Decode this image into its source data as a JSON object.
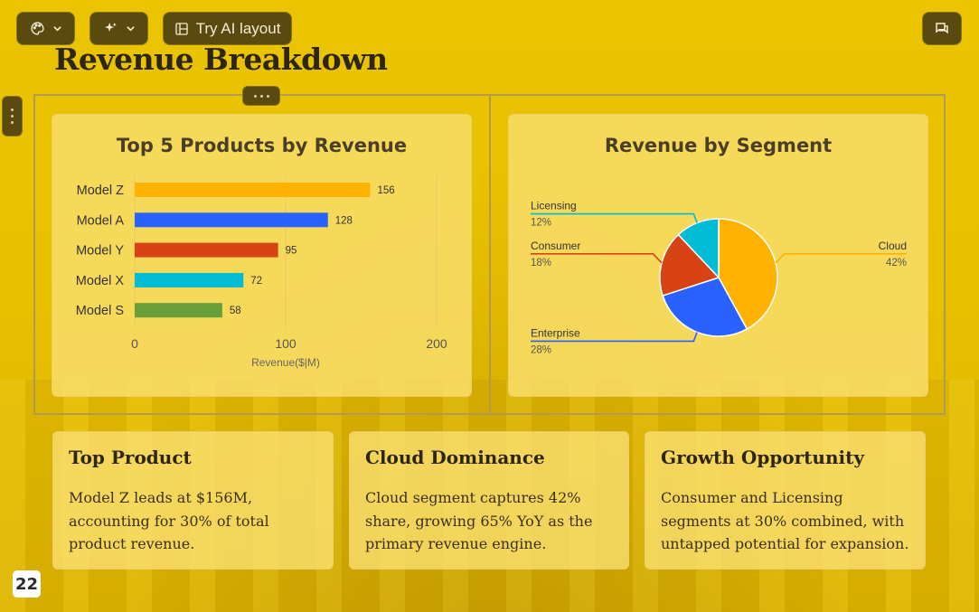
{
  "toolbar": {
    "theme_icon": "palette-icon",
    "ai_icon": "sparkles-icon",
    "ai_layout_label": "Try AI layout",
    "ai_layout_icon": "layout-icon",
    "comment_icon": "comment-icon"
  },
  "slide": {
    "title": "Revenue Breakdown",
    "page_number": "22"
  },
  "colors": {
    "orange": "#FFB300",
    "blue": "#2962FF",
    "red": "#D84315",
    "cyan": "#00BCD4",
    "green": "#689F38"
  },
  "chart_data": [
    {
      "type": "bar",
      "orientation": "horizontal",
      "title": "Top 5 Products by Revenue",
      "xlabel": "Revenue($|M)",
      "ylabel": "",
      "categories": [
        "Model Z",
        "Model A",
        "Model Y",
        "Model X",
        "Model S"
      ],
      "values": [
        156,
        128,
        95,
        72,
        58
      ],
      "value_labels": [
        "156",
        "128",
        "95",
        "72",
        "58"
      ],
      "colors": [
        "#FFB300",
        "#2962FF",
        "#D84315",
        "#00BCD4",
        "#689F38"
      ],
      "xlim": [
        0,
        200
      ],
      "xticks": [
        "0",
        "100",
        "200"
      ],
      "grid": true
    },
    {
      "type": "pie",
      "title": "Revenue by Segment",
      "slices": [
        {
          "label": "Cloud",
          "value": 42,
          "pct_label": "42%",
          "color": "#FFB300"
        },
        {
          "label": "Enterprise",
          "value": 28,
          "pct_label": "28%",
          "color": "#2962FF"
        },
        {
          "label": "Consumer",
          "value": 18,
          "pct_label": "18%",
          "color": "#D84315"
        },
        {
          "label": "Licensing",
          "value": 12,
          "pct_label": "12%",
          "color": "#00BCD4"
        }
      ]
    }
  ],
  "insights": [
    {
      "title": "Top Product",
      "body": "Model Z leads at $156M, accounting for 30% of total product revenue."
    },
    {
      "title": "Cloud Dominance",
      "body": "Cloud segment captures 42% share, growing 65% YoY as the primary revenue engine."
    },
    {
      "title": "Growth Opportunity",
      "body": "Consumer and Licensing segments at 30% combined, with untapped potential for expansion."
    }
  ]
}
